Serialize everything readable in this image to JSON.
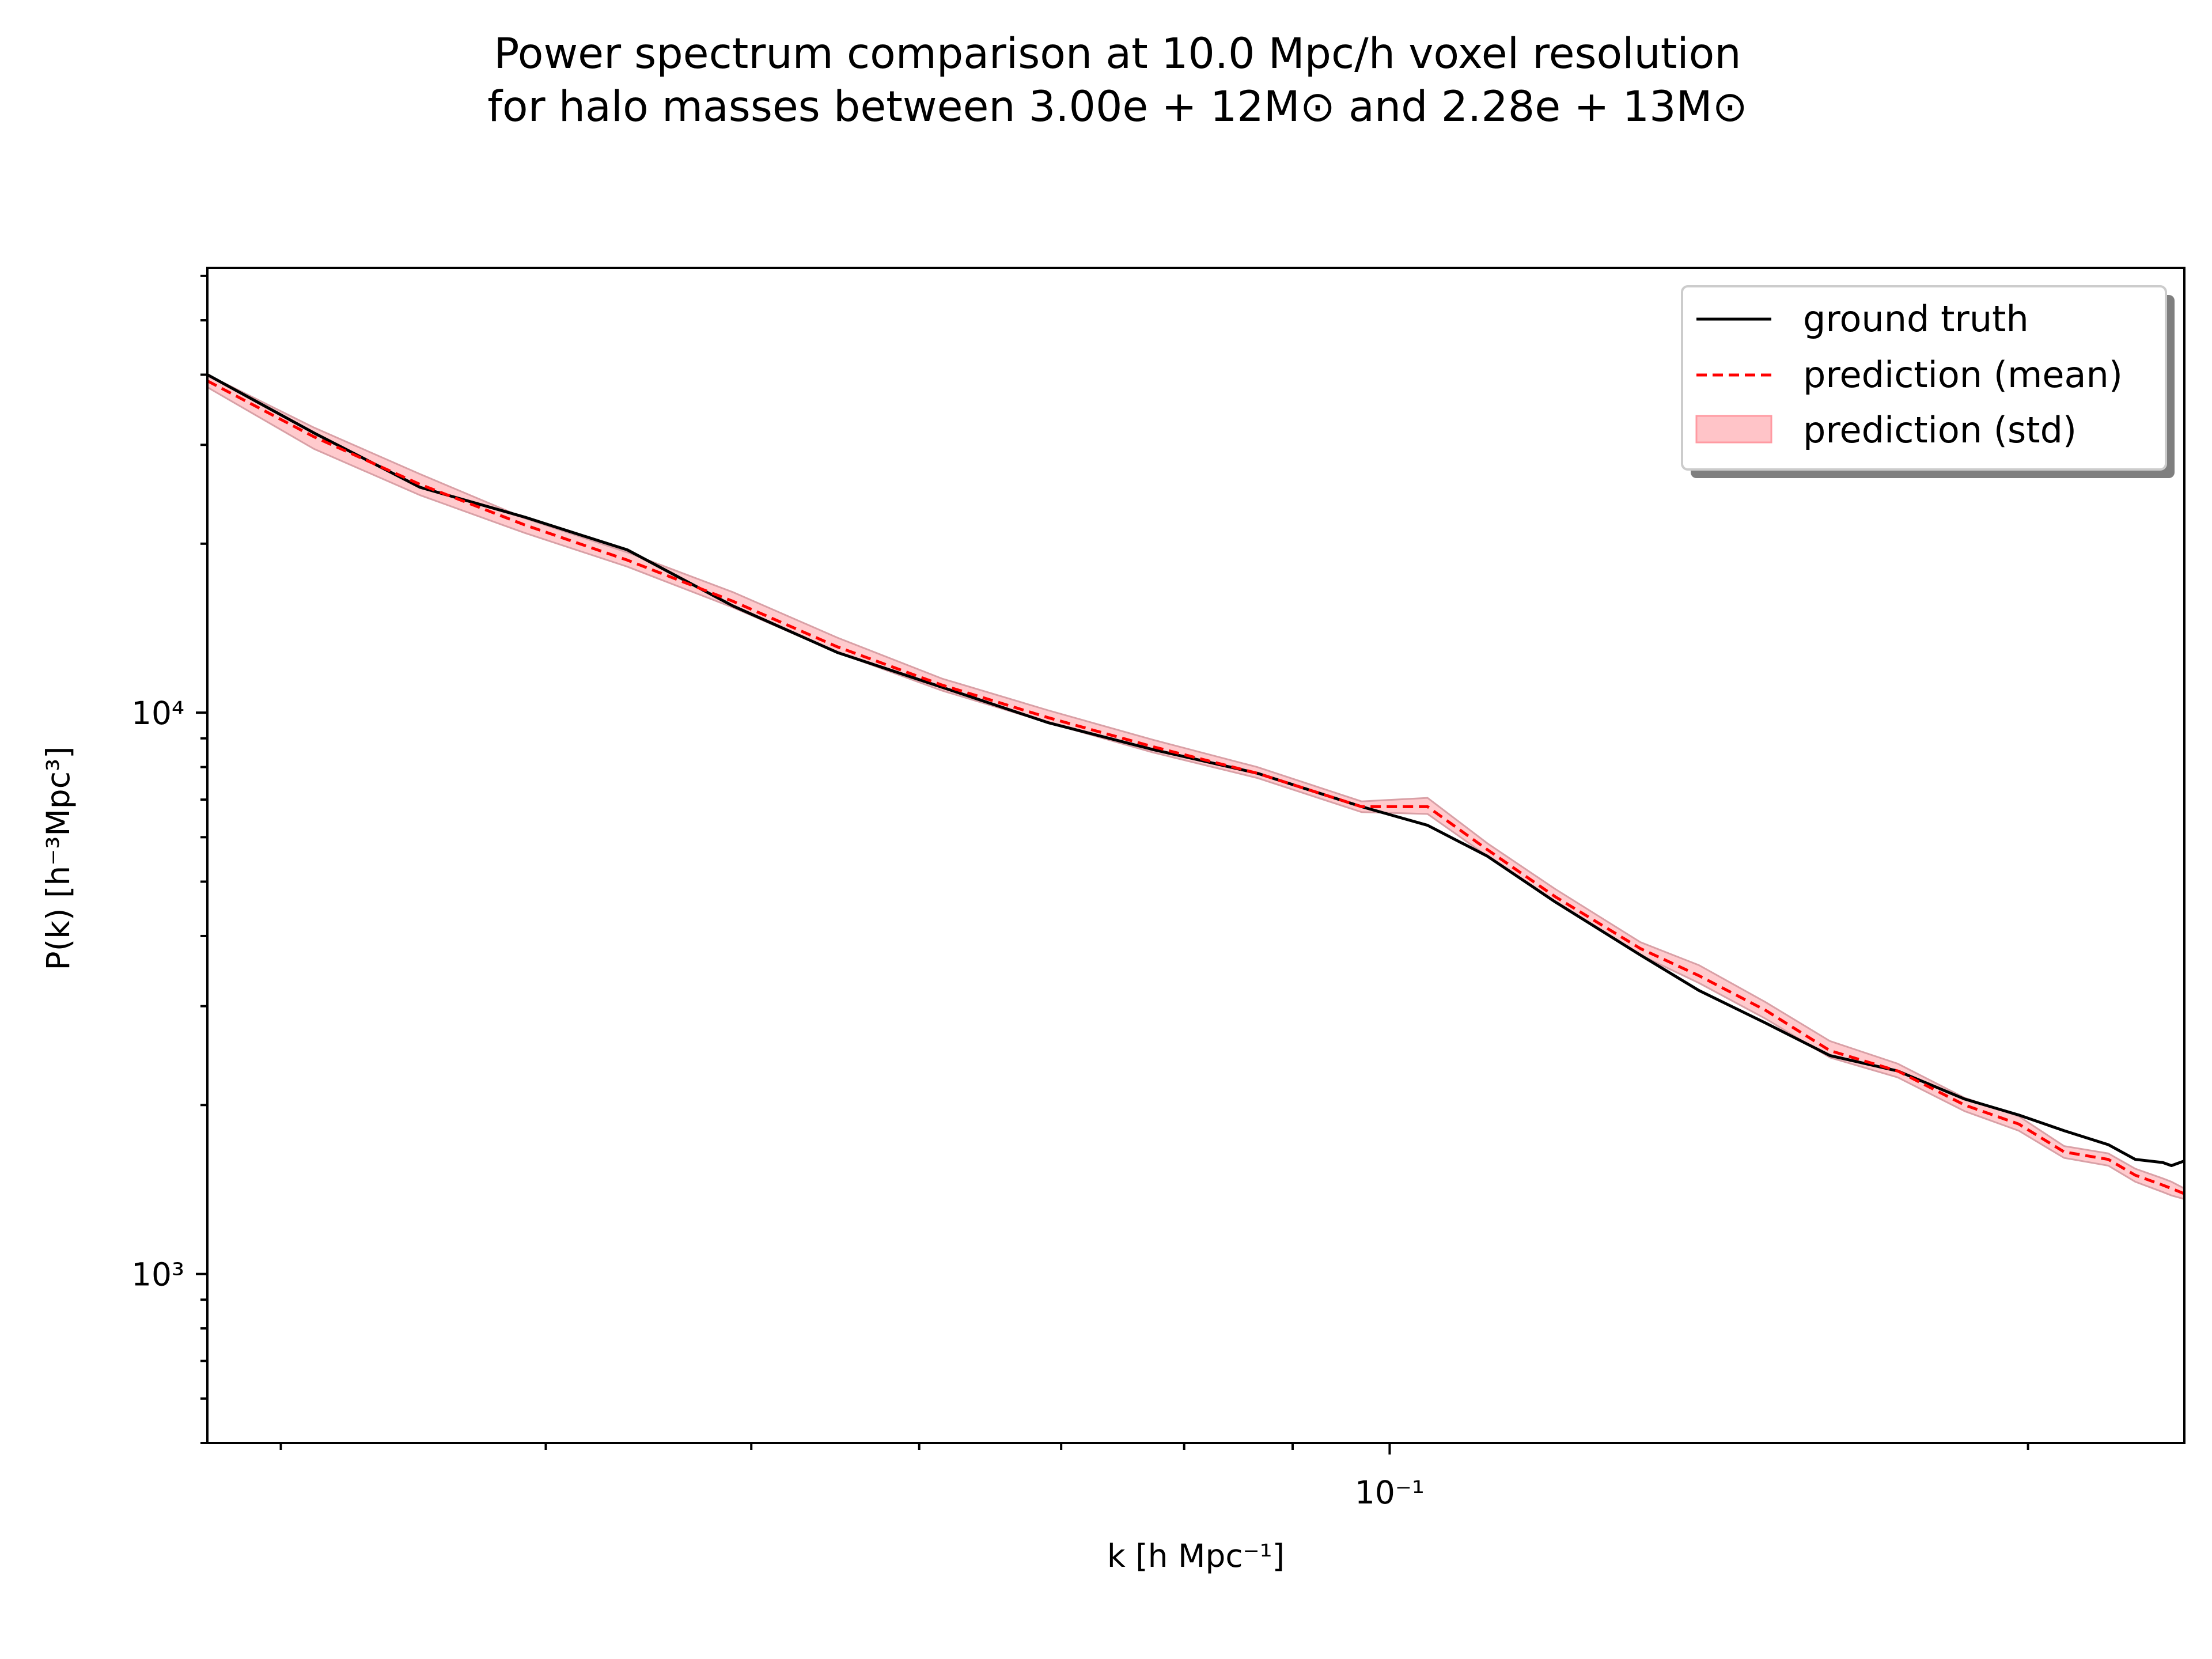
{
  "chart_data": {
    "type": "line",
    "title_lines": [
      "Power spectrum comparison at 10.0 Mpc/h voxel resolution",
      "for halo masses between 3.00e + 12M⊙ and 2.28e + 13M⊙"
    ],
    "xlabel": "k [h Mpc⁻¹]",
    "ylabel": "P(k) [h⁻³Mpc³]",
    "xscale": "log",
    "yscale": "log",
    "xlim": [
      0.0277,
      0.237
    ],
    "ylim": [
      500,
      62000
    ],
    "x_tick_labels": [
      {
        "value": 0.1,
        "label": "10⁻¹"
      }
    ],
    "y_tick_labels": [
      {
        "value": 1000,
        "label": "10³"
      },
      {
        "value": 10000,
        "label": "10⁴"
      }
    ],
    "grid": false,
    "legend": {
      "position": "upper right",
      "entries": [
        {
          "label": "ground truth",
          "style": "solid",
          "color": "#000000"
        },
        {
          "label": "prediction (mean)",
          "style": "dashed",
          "color": "#ff0000"
        },
        {
          "label": "prediction (std)",
          "style": "band",
          "color": "#ffb3b8"
        }
      ]
    },
    "series": [
      {
        "name": "ground truth",
        "color": "#000000",
        "x": [
          0.0277,
          0.0311,
          0.0349,
          0.0391,
          0.0437,
          0.049,
          0.0549,
          0.0615,
          0.069,
          0.0773,
          0.0866,
          0.097,
          0.1042,
          0.1112,
          0.1197,
          0.1313,
          0.1399,
          0.1504,
          0.1613,
          0.1736,
          0.1867,
          0.198,
          0.208,
          0.2182,
          0.2247,
          0.2315,
          0.2337,
          0.237
        ],
        "y": [
          40000,
          31500,
          25200,
          22300,
          19500,
          15500,
          12800,
          11100,
          9600,
          8600,
          7800,
          6800,
          6300,
          5550,
          4600,
          3700,
          3200,
          2800,
          2450,
          2300,
          2050,
          1920,
          1800,
          1700,
          1600,
          1580,
          1560,
          1590
        ]
      },
      {
        "name": "prediction (mean)",
        "color": "#ff0000",
        "x": [
          0.0277,
          0.0311,
          0.0349,
          0.0391,
          0.0437,
          0.049,
          0.0549,
          0.0615,
          0.069,
          0.0773,
          0.0866,
          0.097,
          0.1042,
          0.1112,
          0.1197,
          0.1313,
          0.1399,
          0.1504,
          0.1613,
          0.1736,
          0.1867,
          0.198,
          0.208,
          0.2182,
          0.2247,
          0.2315,
          0.2337,
          0.237
        ],
        "y": [
          39000,
          31000,
          25500,
          21600,
          18700,
          15800,
          13100,
          11200,
          9800,
          8700,
          7800,
          6800,
          6800,
          5700,
          4700,
          3800,
          3400,
          2950,
          2500,
          2300,
          2000,
          1850,
          1650,
          1600,
          1500,
          1440,
          1420,
          1390
        ]
      }
    ],
    "std_band": {
      "name": "prediction (std)",
      "color": "#ffb3b8",
      "x": [
        0.0277,
        0.0311,
        0.0349,
        0.0391,
        0.0437,
        0.049,
        0.0549,
        0.0615,
        0.069,
        0.0773,
        0.0866,
        0.097,
        0.1042,
        0.1112,
        0.1197,
        0.1313,
        0.1399,
        0.1504,
        0.1613,
        0.1736,
        0.1867,
        0.198,
        0.208,
        0.2182,
        0.2247,
        0.2315,
        0.2337,
        0.237
      ],
      "lower": [
        38000,
        29500,
        24400,
        20900,
        18200,
        15400,
        12800,
        10950,
        9600,
        8500,
        7650,
        6650,
        6600,
        5550,
        4600,
        3700,
        3300,
        2850,
        2430,
        2240,
        1950,
        1800,
        1610,
        1560,
        1460,
        1400,
        1380,
        1360
      ],
      "upper": [
        40000,
        32200,
        26600,
        22200,
        19300,
        16400,
        13600,
        11500,
        10100,
        8950,
        8000,
        6950,
        7050,
        5850,
        4850,
        3900,
        3550,
        3050,
        2600,
        2370,
        2060,
        1910,
        1690,
        1640,
        1540,
        1480,
        1460,
        1420
      ]
    }
  }
}
